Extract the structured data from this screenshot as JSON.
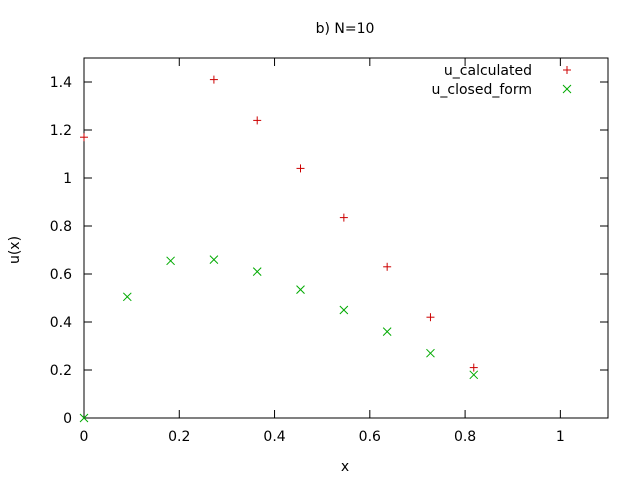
{
  "chart_data": {
    "type": "scatter",
    "title": "b) N=10",
    "xlabel": "x",
    "ylabel": "u(x)",
    "xlim": [
      0,
      1.1
    ],
    "ylim": [
      0,
      1.5
    ],
    "xticks": [
      0,
      0.2,
      0.4,
      0.6,
      0.8,
      1
    ],
    "xtick_labels": [
      "0",
      "0.2",
      "0.4",
      "0.6",
      "0.8",
      "1"
    ],
    "yticks": [
      0,
      0.2,
      0.4,
      0.6,
      0.8,
      1,
      1.2,
      1.4
    ],
    "ytick_labels": [
      "0",
      "0.2",
      "0.4",
      "0.6",
      "0.8",
      "1",
      "1.2",
      "1.4"
    ],
    "grid": false,
    "legend_position": "top-right",
    "series": [
      {
        "name": "u_calculated",
        "marker": "plus",
        "color": "#cc0000",
        "x": [
          0,
          0.2727,
          0.3636,
          0.4545,
          0.5455,
          0.6364,
          0.7273,
          0.8182
        ],
        "y": [
          1.17,
          1.41,
          1.24,
          1.04,
          0.835,
          0.63,
          0.42,
          0.21
        ]
      },
      {
        "name": "u_closed_form",
        "marker": "cross",
        "color": "#00aa00",
        "x": [
          0,
          0.0909,
          0.1818,
          0.2727,
          0.3636,
          0.4545,
          0.5455,
          0.6364,
          0.7273,
          0.8182
        ],
        "y": [
          0,
          0.505,
          0.655,
          0.66,
          0.61,
          0.535,
          0.45,
          0.36,
          0.27,
          0.18
        ]
      }
    ]
  }
}
